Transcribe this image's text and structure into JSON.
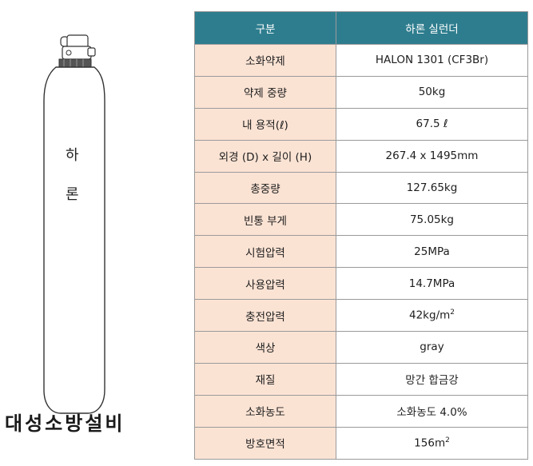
{
  "cylinder": {
    "label_line1": "하",
    "label_line2": "론"
  },
  "brand": "대성소방설비",
  "table": {
    "header": {
      "col1": "구분",
      "col2": "하론 실런더"
    },
    "rows": [
      {
        "key": "소화약제",
        "value": "HALON 1301 (CF3Br)"
      },
      {
        "key": "약제 중량",
        "value": "50kg"
      },
      {
        "key": "내 용적(ℓ)",
        "value": "67.5 ℓ"
      },
      {
        "key": "외경 (D) x 길이 (H)",
        "value": "267.4 x 1495mm"
      },
      {
        "key": "총중량",
        "value": "127.65kg"
      },
      {
        "key": "빈통 부게",
        "value": "75.05kg"
      },
      {
        "key": "시험압력",
        "value": "25MPa"
      },
      {
        "key": "사용압력",
        "value": "14.7MPa"
      },
      {
        "key": "충전압력",
        "value": "42kg/m",
        "sup": "2"
      },
      {
        "key": "색상",
        "value": "gray"
      },
      {
        "key": "재질",
        "value": "망간 합금강"
      },
      {
        "key": "소화농도",
        "value": "소화농도 4.0%"
      },
      {
        "key": "방호면적",
        "value": "156m",
        "sup": "2"
      }
    ]
  }
}
